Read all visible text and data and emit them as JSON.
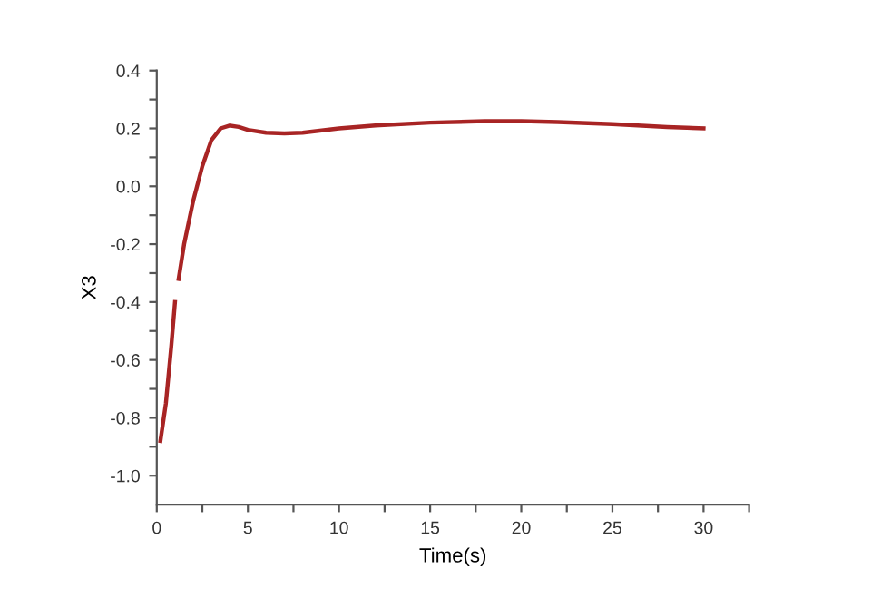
{
  "chart_data": {
    "type": "line",
    "xlabel": "Time(s)",
    "ylabel": "X3",
    "series": [
      {
        "color": "#a82424",
        "x": [
          0.2,
          0.5,
          0.8,
          1.0,
          1.1,
          1.2,
          1.5,
          2,
          2.5,
          3,
          3.5,
          4,
          4.5,
          5,
          6,
          7,
          8,
          10,
          12,
          15,
          18,
          20,
          22,
          25,
          28,
          30
        ],
        "values": [
          -0.88,
          -0.75,
          -0.55,
          -0.4,
          null,
          -0.32,
          -0.2,
          -0.05,
          0.07,
          0.16,
          0.2,
          0.21,
          0.205,
          0.195,
          0.185,
          0.183,
          0.185,
          0.2,
          0.21,
          0.22,
          0.225,
          0.225,
          0.222,
          0.215,
          0.205,
          0.2
        ]
      }
    ],
    "xlim": [
      0,
      32.5
    ],
    "ylim": [
      -1.1,
      0.4
    ],
    "xticks": [
      0,
      {
        "value": 2.5,
        "label": null
      },
      5,
      {
        "value": 7.5,
        "label": null
      },
      10,
      {
        "value": 12.5,
        "label": null
      },
      15,
      {
        "value": 17.5,
        "label": null
      },
      20,
      {
        "value": 22.5,
        "label": null
      },
      25,
      {
        "value": 27.5,
        "label": null
      },
      30,
      {
        "value": 32.5,
        "label": null
      }
    ],
    "yticks": [
      {
        "value": -1.0,
        "label": "-1.0"
      },
      {
        "value": -0.9,
        "label": null
      },
      {
        "value": -0.8,
        "label": "-0.8"
      },
      {
        "value": -0.7,
        "label": null
      },
      {
        "value": -0.6,
        "label": "-0.6"
      },
      {
        "value": -0.5,
        "label": null
      },
      {
        "value": -0.4,
        "label": "-0.4"
      },
      {
        "value": -0.3,
        "label": null
      },
      {
        "value": -0.2,
        "label": "-0.2"
      },
      {
        "value": -0.1,
        "label": null
      },
      {
        "value": 0.0,
        "label": "0.0"
      },
      {
        "value": 0.1,
        "label": null
      },
      {
        "value": 0.2,
        "label": "0.2"
      },
      {
        "value": 0.3,
        "label": null
      },
      {
        "value": 0.4,
        "label": "0.4"
      }
    ],
    "grid": false,
    "marker": "none",
    "line_style": "solid"
  }
}
